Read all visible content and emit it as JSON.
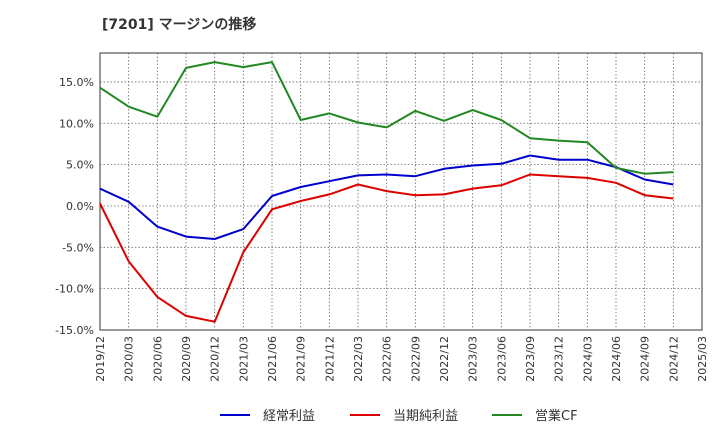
{
  "chart_data": {
    "type": "line",
    "title": "[7201]  マージンの推移",
    "xlabel": "",
    "ylabel": "",
    "categories": [
      "2019/12",
      "2020/03",
      "2020/06",
      "2020/09",
      "2020/12",
      "2021/03",
      "2021/06",
      "2021/09",
      "2021/12",
      "2022/03",
      "2022/06",
      "2022/09",
      "2022/12",
      "2023/03",
      "2023/06",
      "2023/09",
      "2023/12",
      "2024/03",
      "2024/06",
      "2024/09",
      "2024/12",
      "2025/03"
    ],
    "ylim": [
      -15,
      18.5
    ],
    "yticks": [
      -15,
      -10,
      -5,
      0,
      5,
      10,
      15
    ],
    "ytick_labels": [
      "-15.0%",
      "-10.0%",
      "-5.0%",
      "0.0%",
      "5.0%",
      "10.0%",
      "15.0%"
    ],
    "grid": true,
    "legend_position": "bottom",
    "series": [
      {
        "name": "経常利益",
        "color": "#0000cc",
        "values": [
          2.1,
          0.5,
          -2.5,
          -3.7,
          -4.0,
          -2.8,
          1.2,
          2.3,
          3.0,
          3.7,
          3.8,
          3.6,
          4.5,
          4.9,
          5.1,
          6.1,
          5.6,
          5.6,
          4.7,
          3.2,
          2.6,
          null
        ]
      },
      {
        "name": "当期純利益",
        "color": "#dd0000",
        "values": [
          0.3,
          -6.7,
          -11.0,
          -13.3,
          -14.0,
          -5.6,
          -0.4,
          0.6,
          1.4,
          2.6,
          1.8,
          1.3,
          1.4,
          2.1,
          2.5,
          3.8,
          3.6,
          3.4,
          2.8,
          1.3,
          0.9,
          null
        ]
      },
      {
        "name": "営業CF",
        "color": "#228822",
        "values": [
          14.3,
          12.0,
          10.8,
          16.7,
          17.4,
          16.8,
          17.4,
          10.4,
          11.2,
          10.1,
          9.5,
          11.5,
          10.3,
          11.6,
          10.4,
          8.2,
          7.9,
          7.7,
          4.6,
          3.9,
          4.1,
          null
        ]
      }
    ]
  }
}
